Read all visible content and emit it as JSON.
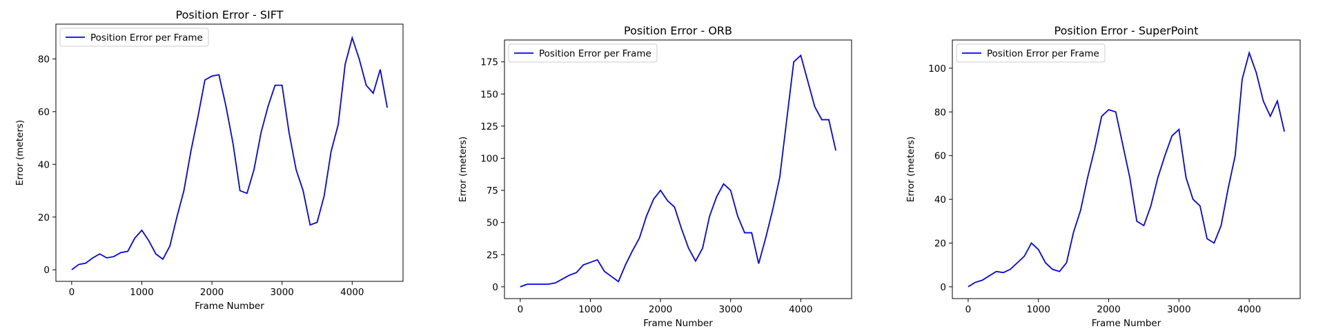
{
  "chart_data": [
    {
      "type": "line",
      "title": "Position Error - SIFT",
      "x_label": "Frame Number",
      "y_label": "Error (meters)",
      "x": [
        0,
        100,
        200,
        300,
        400,
        500,
        600,
        700,
        800,
        900,
        1000,
        1100,
        1200,
        1300,
        1400,
        1500,
        1600,
        1700,
        1800,
        1900,
        2000,
        2100,
        2200,
        2300,
        2400,
        2500,
        2600,
        2700,
        2800,
        2900,
        3000,
        3100,
        3200,
        3300,
        3400,
        3500,
        3600,
        3700,
        3800,
        3900,
        4000,
        4100,
        4200,
        4300,
        4400,
        4500
      ],
      "series": [
        {
          "name": "Position Error per Frame",
          "color": "#0000ff",
          "values": [
            0,
            2,
            2.5,
            4.5,
            6,
            4.5,
            5,
            6.5,
            7,
            12,
            15,
            11,
            6,
            4,
            9,
            20,
            30,
            45,
            58,
            72,
            73.5,
            74,
            62,
            48,
            30,
            29,
            38,
            52,
            62,
            70,
            70,
            52,
            38,
            30,
            17,
            18,
            28,
            45,
            55,
            78,
            88,
            80,
            70,
            67,
            76,
            61.5
          ]
        }
      ],
      "xlim": [
        -225,
        4725
      ],
      "ylim": [
        -4.4,
        93.2
      ],
      "xticks": [
        0,
        1000,
        2000,
        3000,
        4000
      ],
      "yticks": [
        0,
        20,
        40,
        60,
        80
      ],
      "legend": "upper left"
    },
    {
      "type": "line",
      "title": "Position Error - ORB",
      "x_label": "Frame Number",
      "y_label": "Error (meters)",
      "x": [
        0,
        100,
        200,
        300,
        400,
        500,
        600,
        700,
        800,
        900,
        1000,
        1100,
        1200,
        1300,
        1400,
        1500,
        1600,
        1700,
        1800,
        1900,
        2000,
        2100,
        2200,
        2300,
        2400,
        2500,
        2600,
        2700,
        2800,
        2900,
        3000,
        3100,
        3200,
        3300,
        3400,
        3500,
        3600,
        3700,
        3800,
        3900,
        4000,
        4100,
        4200,
        4300,
        4400,
        4500
      ],
      "series": [
        {
          "name": "Position Error per Frame",
          "color": "#0000ff",
          "values": [
            0,
            2,
            2,
            2,
            2,
            3,
            6,
            9,
            11,
            17,
            19,
            21,
            12,
            8,
            4,
            17,
            28,
            38,
            55,
            68,
            75,
            67,
            62,
            45,
            30,
            20,
            30,
            55,
            70,
            80,
            75,
            55,
            42,
            42,
            18,
            38,
            60,
            85,
            130,
            175,
            180,
            160,
            140,
            130,
            130,
            106
          ]
        }
      ],
      "xlim": [
        -225,
        4725
      ],
      "ylim": [
        -9.2,
        192
      ],
      "xticks": [
        0,
        1000,
        2000,
        3000,
        4000
      ],
      "yticks": [
        0,
        25,
        50,
        75,
        100,
        125,
        150,
        175
      ],
      "legend": "upper left"
    },
    {
      "type": "line",
      "title": "Position Error - SuperPoint",
      "x_label": "Frame Number",
      "y_label": "Error (meters)",
      "x": [
        0,
        100,
        200,
        300,
        400,
        500,
        600,
        700,
        800,
        900,
        1000,
        1100,
        1200,
        1300,
        1400,
        1500,
        1600,
        1700,
        1800,
        1900,
        2000,
        2100,
        2200,
        2300,
        2400,
        2500,
        2600,
        2700,
        2800,
        2900,
        3000,
        3100,
        3200,
        3300,
        3400,
        3500,
        3600,
        3700,
        3800,
        3900,
        4000,
        4100,
        4200,
        4300,
        4400,
        4500
      ],
      "series": [
        {
          "name": "Position Error per Frame",
          "color": "#0000ff",
          "values": [
            0,
            2,
            3,
            5,
            7,
            6.5,
            8,
            11,
            14,
            20,
            17,
            11,
            8,
            7,
            11,
            25,
            35,
            50,
            63,
            78,
            81,
            80,
            65,
            50,
            30,
            28,
            37,
            50,
            60,
            69,
            72,
            50,
            40,
            37,
            22,
            20,
            28,
            45,
            60,
            95,
            107,
            98,
            85,
            78,
            85,
            71
          ]
        }
      ],
      "xlim": [
        -225,
        4725
      ],
      "ylim": [
        -5.4,
        112.9
      ],
      "xticks": [
        0,
        1000,
        2000,
        3000,
        4000
      ],
      "yticks": [
        0,
        20,
        40,
        60,
        80,
        100
      ],
      "legend": "upper left"
    }
  ]
}
